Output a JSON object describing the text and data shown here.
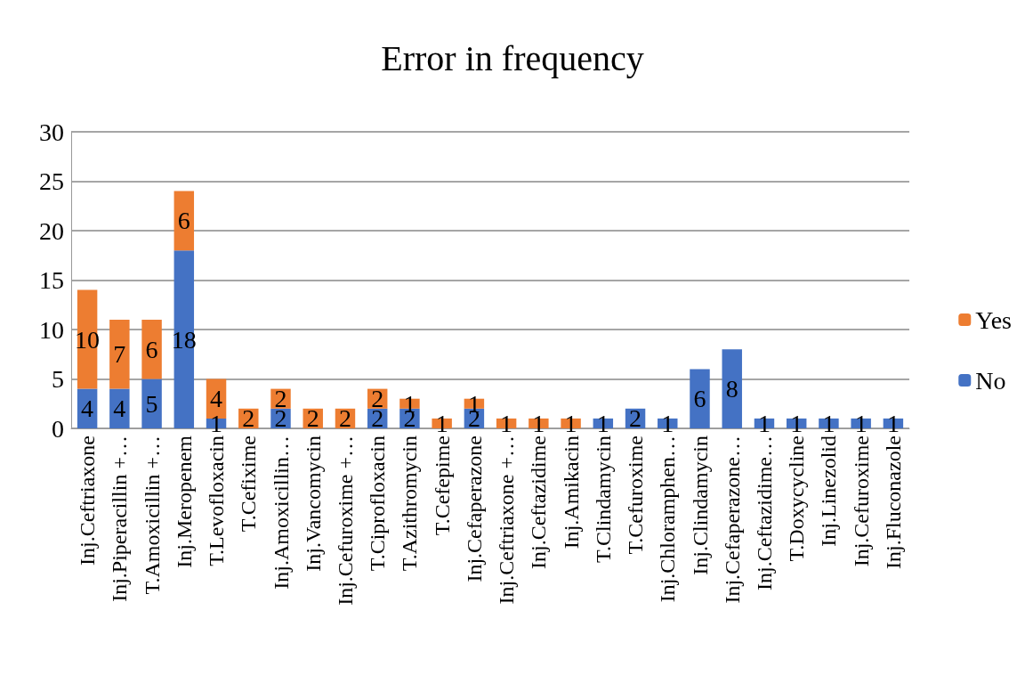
{
  "chart_data": {
    "type": "bar",
    "title": "Error in frequency",
    "stacked": true,
    "data_labels": true,
    "grid": "y",
    "legend": "right",
    "categories": [
      "Inj.Ceftriaxone",
      "Inj.Piperacillin +…",
      "T.Amoxicillin +…",
      "Inj.Meropenem",
      "T.Levofloxacin",
      "T.Cefixime",
      "Inj.Amoxicillin…",
      "Inj.Vancomycin",
      "Inj.Cefuroxime +…",
      "T.Ciprofloxacin",
      "T.Azithromycin",
      "T.Cefepime",
      "Inj.Cefaperazone",
      "Inj.Ceftriaxone +…",
      "Inj.Ceftazidime",
      "Inj.Amikacin",
      "T.Clindamycin",
      "T.Cefuroxime",
      "Inj.Chloramphen…",
      "Inj.Clindamycin",
      "Inj.Cefaperazone…",
      "Inj.Ceftazidime…",
      "T.Doxycycline",
      "Inj.Linezolid",
      "Inj.Cefuroxime",
      "Inj.Fluconazole"
    ],
    "series": [
      {
        "name": "No",
        "color": "#4472c4",
        "values": [
          4,
          4,
          5,
          18,
          1,
          null,
          2,
          null,
          null,
          2,
          2,
          null,
          2,
          null,
          null,
          null,
          1,
          2,
          1,
          6,
          8,
          1,
          1,
          1,
          1,
          1
        ]
      },
      {
        "name": "Yes",
        "color": "#ed7d31",
        "values": [
          10,
          7,
          6,
          6,
          4,
          2,
          2,
          2,
          2,
          2,
          1,
          1,
          1,
          1,
          1,
          1,
          null,
          null,
          null,
          null,
          null,
          null,
          null,
          null,
          null,
          null
        ]
      }
    ],
    "ylim": [
      0,
      30
    ],
    "yticks": [
      0,
      5,
      10,
      15,
      20,
      25,
      30
    ]
  }
}
